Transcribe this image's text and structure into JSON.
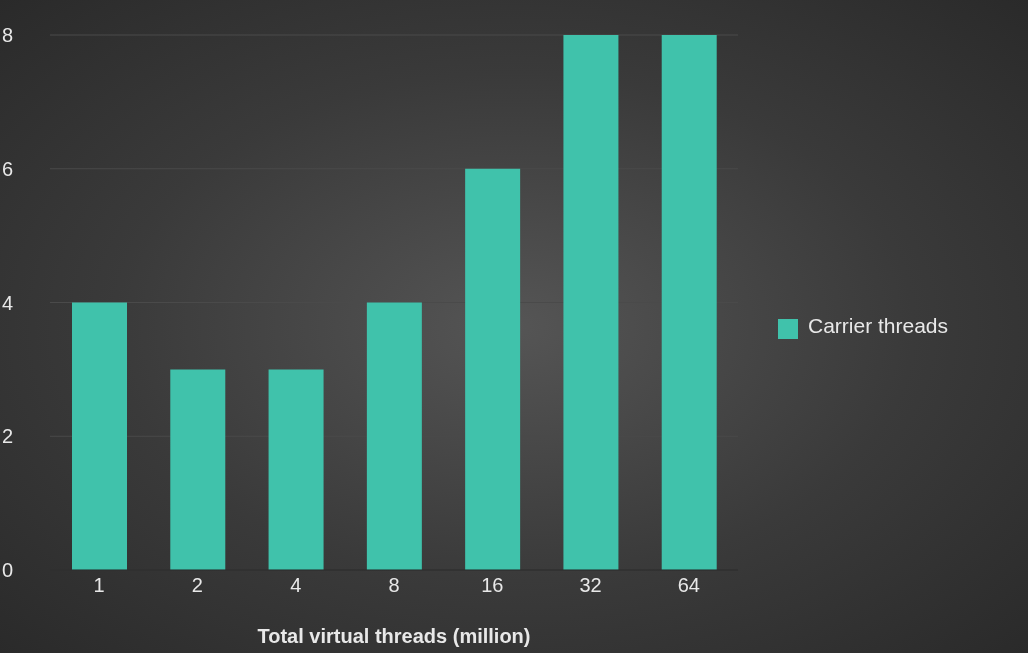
{
  "chart_data": {
    "type": "bar",
    "xlabel": "Total virtual threads (million)",
    "categories": [
      "1",
      "2",
      "4",
      "8",
      "16",
      "32",
      "64"
    ],
    "series": [
      {
        "name": "Carrier threads",
        "color": "#40c2ab",
        "values": [
          4,
          3,
          3,
          4,
          6,
          8,
          8
        ]
      }
    ],
    "ylim": [
      0,
      8
    ],
    "yticks": [
      0,
      2,
      4,
      6,
      8
    ],
    "grid": "y",
    "legend": "right"
  }
}
